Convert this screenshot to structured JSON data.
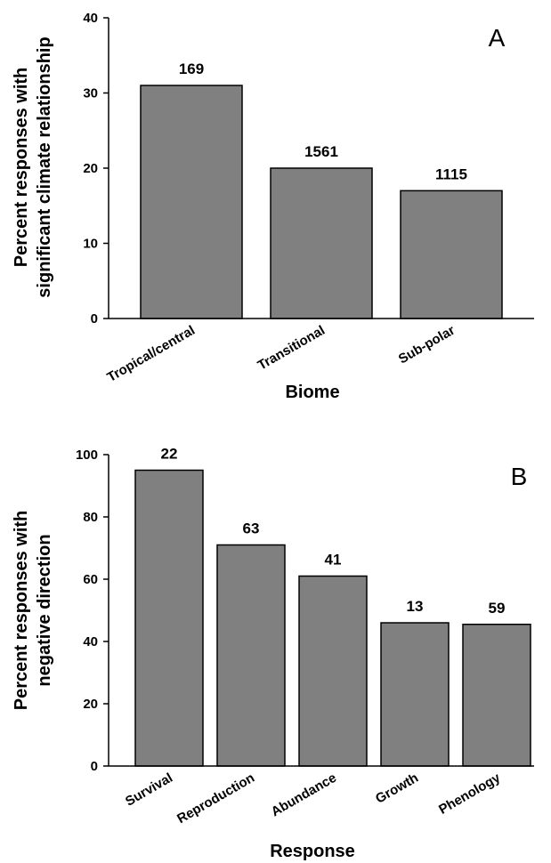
{
  "figure": {
    "colors": {
      "bar": "#808080",
      "bar_stroke": "#000000",
      "axis": "#000000"
    }
  },
  "chart_data": [
    {
      "type": "bar",
      "panel_label": "A",
      "categories": [
        "Tropical/central",
        "Transitional",
        "Sub-polar"
      ],
      "values": [
        31,
        20,
        17
      ],
      "data_labels": [
        "169",
        "1561",
        "1115"
      ],
      "xlabel": "Biome",
      "ylabel_lines": [
        "Percent responses with",
        "significant climate relationship"
      ],
      "ylim": [
        0,
        40
      ],
      "yticks": [
        0,
        10,
        20,
        30,
        40
      ],
      "grid": false,
      "legend": "none"
    },
    {
      "type": "bar",
      "panel_label": "B",
      "categories": [
        "Survival",
        "Reproduction",
        "Abundance",
        "Growth",
        "Phenology"
      ],
      "values": [
        95,
        71,
        61,
        46,
        45.5
      ],
      "data_labels": [
        "22",
        "63",
        "41",
        "13",
        "59"
      ],
      "xlabel": "Response",
      "ylabel_lines": [
        "Percent responses with",
        "negative direction"
      ],
      "ylim": [
        0,
        100
      ],
      "yticks": [
        0,
        20,
        40,
        60,
        80,
        100
      ],
      "grid": false,
      "legend": "none"
    }
  ]
}
